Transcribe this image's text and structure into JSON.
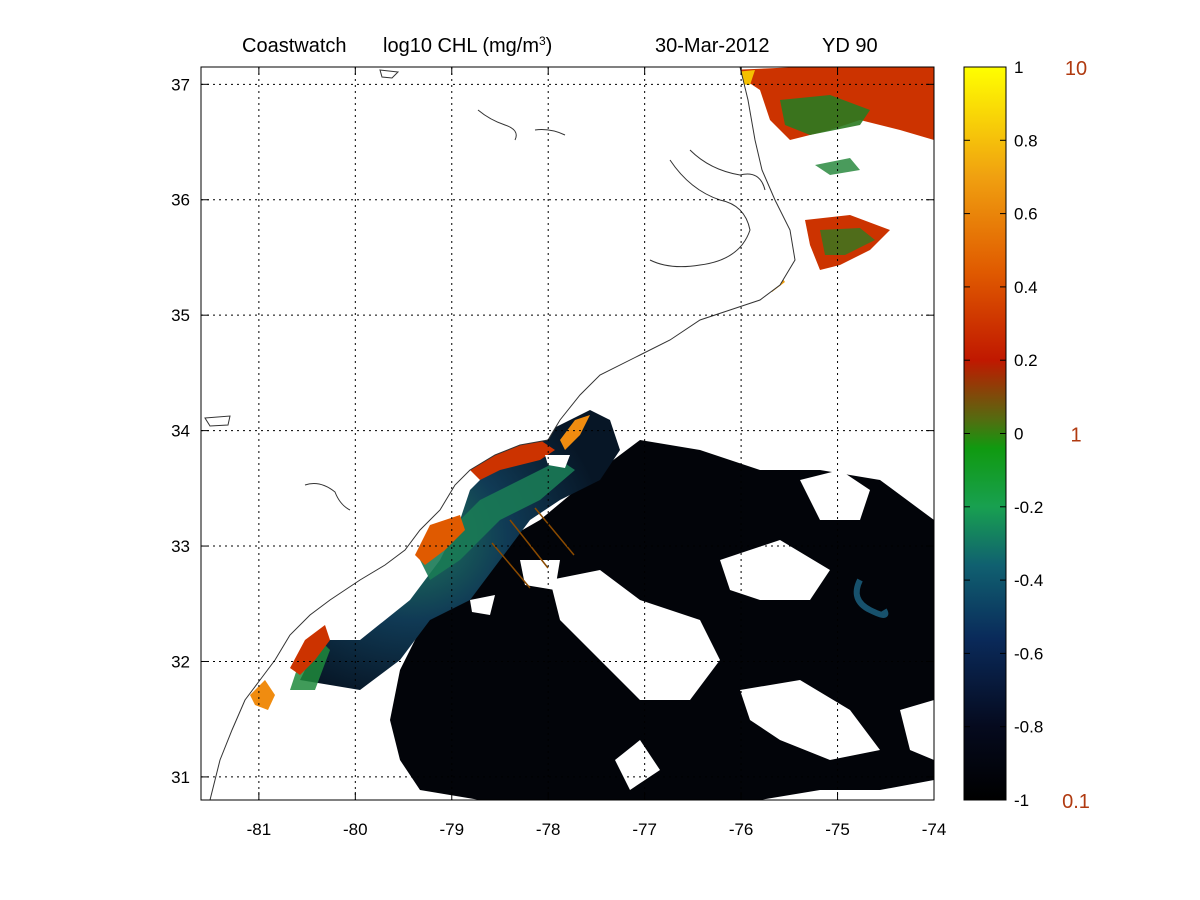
{
  "title": {
    "product": "Coastwatch",
    "variable": "log10  CHL (mg/m",
    "unit_exponent": "3",
    "unit_close": ")",
    "date": "30-Mar-2012",
    "yearday": "YD 90"
  },
  "map": {
    "lon_range": [
      -81.6,
      -74.0
    ],
    "lat_range": [
      30.8,
      37.15
    ],
    "grid": true,
    "x_ticks": [
      {
        "value": -81,
        "label": "-81"
      },
      {
        "value": -80,
        "label": "-80"
      },
      {
        "value": -79,
        "label": "-79"
      },
      {
        "value": -78,
        "label": "-78"
      },
      {
        "value": -77,
        "label": "-77"
      },
      {
        "value": -76,
        "label": "-76"
      },
      {
        "value": -75,
        "label": "-75"
      },
      {
        "value": -74,
        "label": "-74"
      }
    ],
    "y_ticks": [
      {
        "value": 31,
        "label": "31"
      },
      {
        "value": 32,
        "label": "32"
      },
      {
        "value": 33,
        "label": "33"
      },
      {
        "value": 34,
        "label": "34"
      },
      {
        "value": 35,
        "label": "35"
      },
      {
        "value": 36,
        "label": "36"
      },
      {
        "value": 37,
        "label": "37"
      }
    ],
    "colors": {
      "ocean_low": "#020409",
      "ocean_mid": "#0d2a44",
      "shelf_green": "#1f8a3c",
      "coastal_red": "#cc3300",
      "coastal_orange": "#f08c10",
      "cloud": "#ffffff",
      "coastline": "#333333"
    }
  },
  "colorbar": {
    "range": [
      -1,
      1
    ],
    "ticks": [
      {
        "value": 1,
        "label": "1"
      },
      {
        "value": 0.8,
        "label": "0.8"
      },
      {
        "value": 0.6,
        "label": "0.6"
      },
      {
        "value": 0.4,
        "label": "0.4"
      },
      {
        "value": 0.2,
        "label": "0.2"
      },
      {
        "value": 0,
        "label": "0"
      },
      {
        "value": -0.2,
        "label": "-0.2"
      },
      {
        "value": -0.4,
        "label": "-0.4"
      },
      {
        "value": -0.6,
        "label": "-0.6"
      },
      {
        "value": -0.8,
        "label": "-0.8"
      },
      {
        "value": -1,
        "label": "-1"
      }
    ],
    "concentration_labels": [
      {
        "value": 1,
        "label": "10"
      },
      {
        "value": 0,
        "label": "1"
      },
      {
        "value": -1,
        "label": "0.1"
      }
    ],
    "gradient": [
      "#ffff00",
      "#f2a000",
      "#cc1f00",
      "#3a7a10",
      "#109a20",
      "#18a060",
      "#105a70",
      "#0a1f50",
      "#000000"
    ]
  }
}
